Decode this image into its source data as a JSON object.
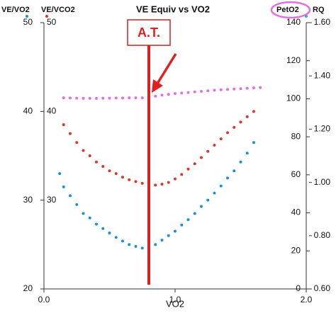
{
  "chart_data": {
    "type": "scatter",
    "title": "VE Equiv vs VO2",
    "x_label": "VO2",
    "xlim": [
      0,
      2
    ],
    "xticks": [
      {
        "value": 0,
        "label": "0.0"
      },
      {
        "value": 1,
        "label": "1.0"
      },
      {
        "value": 2,
        "label": "2.0"
      }
    ],
    "ylim": [
      20,
      50
    ],
    "yticks": [
      20,
      30,
      40,
      50
    ],
    "vco2_ticks": [
      30,
      40,
      50
    ],
    "y2lim": [
      0,
      140
    ],
    "y2ticks": [
      0,
      20,
      40,
      60,
      80,
      100,
      120,
      140
    ],
    "y3_label": "RQ",
    "y3_color": "#2bb3c9",
    "y3lim": [
      0.6,
      1.6
    ],
    "y3ticks": [
      {
        "value": 0.6,
        "label": "0.60"
      },
      {
        "value": 0.8,
        "label": "0.80"
      },
      {
        "value": 1.0,
        "label": "1.00"
      },
      {
        "value": 1.2,
        "label": "1.20"
      },
      {
        "value": 1.4,
        "label": "1.40"
      },
      {
        "value": 1.6,
        "label": "1.60"
      }
    ],
    "annotation": {
      "text": "A.T.",
      "x": 0.8
    },
    "series": [
      {
        "name": "VE/VO2",
        "color": "#1e90d0",
        "axis": "y",
        "x": [
          0.12,
          0.15,
          0.2,
          0.25,
          0.3,
          0.35,
          0.4,
          0.45,
          0.5,
          0.55,
          0.6,
          0.65,
          0.7,
          0.75,
          0.8,
          0.85,
          0.9,
          0.95,
          1.0,
          1.05,
          1.1,
          1.15,
          1.2,
          1.25,
          1.3,
          1.35,
          1.4,
          1.45,
          1.5,
          1.55,
          1.6
        ],
        "values": [
          33,
          31.5,
          30.5,
          29.5,
          28.5,
          28,
          27.3,
          26.8,
          26.3,
          25.8,
          25.4,
          25,
          24.8,
          24.6,
          24.6,
          25,
          25.5,
          26,
          26.5,
          27.2,
          27.8,
          28.5,
          29.3,
          30,
          30.8,
          31.6,
          32.5,
          33.3,
          34.3,
          35.3,
          36.5
        ]
      },
      {
        "name": "VE/VCO2",
        "color": "#d9372b",
        "axis": "y",
        "x": [
          0.15,
          0.2,
          0.25,
          0.3,
          0.35,
          0.4,
          0.45,
          0.5,
          0.55,
          0.6,
          0.65,
          0.7,
          0.75,
          0.8,
          0.85,
          0.9,
          0.95,
          1.0,
          1.05,
          1.1,
          1.15,
          1.2,
          1.25,
          1.3,
          1.35,
          1.4,
          1.45,
          1.5,
          1.55,
          1.6
        ],
        "values": [
          38.5,
          37.5,
          36.5,
          35.6,
          35,
          34.3,
          33.8,
          33.3,
          33,
          32.6,
          32.3,
          32.1,
          31.9,
          31.8,
          31.7,
          31.8,
          32,
          32.4,
          32.9,
          33.5,
          34.1,
          34.8,
          35.5,
          36.2,
          36.9,
          37.6,
          38.2,
          38.8,
          39.4,
          40
        ]
      },
      {
        "name": "PetO2",
        "color": "#e070e0",
        "axis": "y2",
        "x": [
          0.15,
          0.2,
          0.25,
          0.3,
          0.35,
          0.4,
          0.45,
          0.5,
          0.55,
          0.6,
          0.65,
          0.7,
          0.75,
          0.8,
          0.85,
          0.9,
          0.95,
          1.0,
          1.05,
          1.1,
          1.15,
          1.2,
          1.25,
          1.3,
          1.35,
          1.4,
          1.45,
          1.5,
          1.55,
          1.6,
          1.65
        ],
        "values": [
          100.5,
          100.4,
          100.3,
          100.2,
          100.2,
          100.2,
          100.3,
          100.3,
          100.4,
          100.4,
          100.5,
          100.5,
          100.5,
          100.6,
          101.3,
          101.9,
          102.3,
          102.7,
          103,
          103.3,
          103.6,
          103.9,
          104.2,
          104.5,
          104.7,
          104.9,
          105.1,
          105.3,
          105.5,
          105.7,
          105.9
        ]
      }
    ]
  }
}
